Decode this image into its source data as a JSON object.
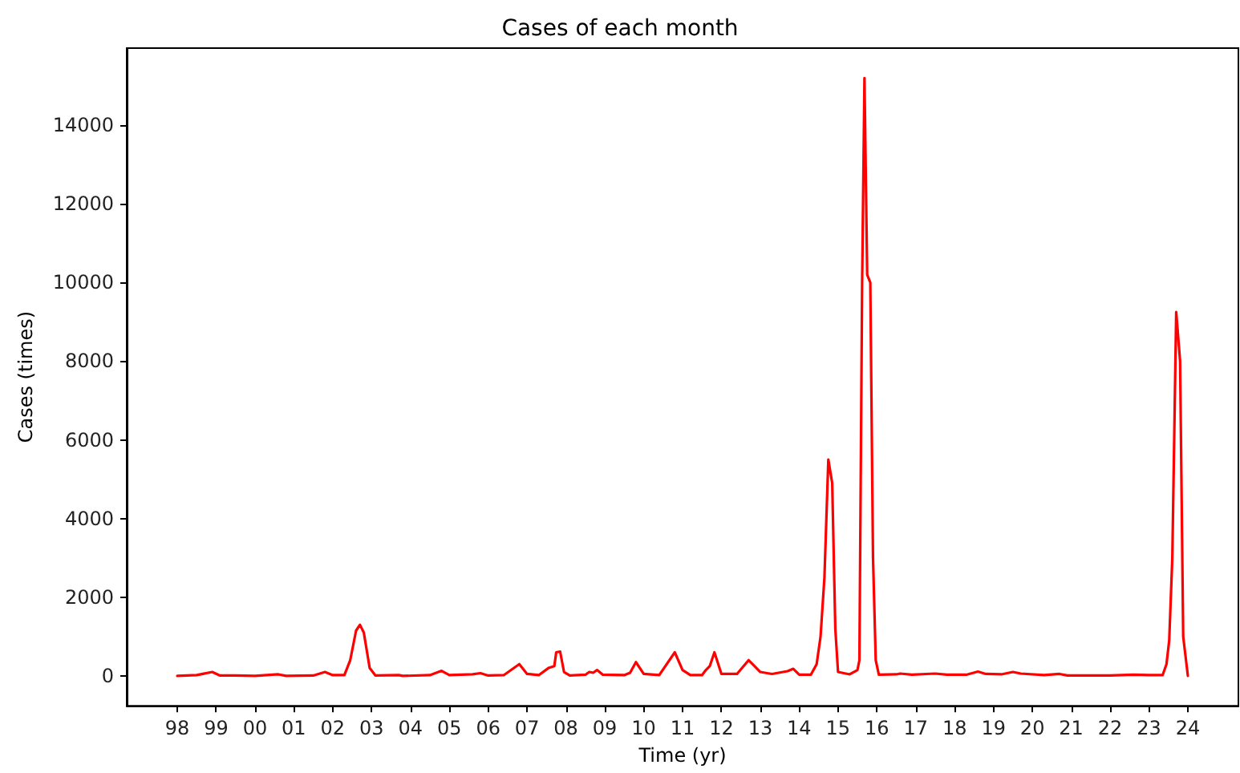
{
  "chart_data": {
    "type": "line",
    "title": "Cases of each month",
    "xlabel": "Time (yr)",
    "ylabel": "Cases (times)",
    "xlim": [
      1996.7,
      2025.3
    ],
    "ylim": [
      -760,
      15960
    ],
    "xticks": [
      {
        "value": 1998,
        "label": "98"
      },
      {
        "value": 1999,
        "label": "99"
      },
      {
        "value": 2000,
        "label": "00"
      },
      {
        "value": 2001,
        "label": "01"
      },
      {
        "value": 2002,
        "label": "02"
      },
      {
        "value": 2003,
        "label": "03"
      },
      {
        "value": 2004,
        "label": "04"
      },
      {
        "value": 2005,
        "label": "05"
      },
      {
        "value": 2006,
        "label": "06"
      },
      {
        "value": 2007,
        "label": "07"
      },
      {
        "value": 2008,
        "label": "08"
      },
      {
        "value": 2009,
        "label": "09"
      },
      {
        "value": 2010,
        "label": "10"
      },
      {
        "value": 2011,
        "label": "11"
      },
      {
        "value": 2012,
        "label": "12"
      },
      {
        "value": 2013,
        "label": "13"
      },
      {
        "value": 2014,
        "label": "14"
      },
      {
        "value": 2015,
        "label": "15"
      },
      {
        "value": 2016,
        "label": "16"
      },
      {
        "value": 2017,
        "label": "17"
      },
      {
        "value": 2018,
        "label": "18"
      },
      {
        "value": 2019,
        "label": "19"
      },
      {
        "value": 2020,
        "label": "20"
      },
      {
        "value": 2021,
        "label": "21"
      },
      {
        "value": 2022,
        "label": "22"
      },
      {
        "value": 2023,
        "label": "23"
      },
      {
        "value": 2024,
        "label": "24"
      }
    ],
    "yticks": [
      0,
      2000,
      4000,
      6000,
      8000,
      10000,
      12000,
      14000
    ],
    "grid": false,
    "marker": "none",
    "line_style": "solid",
    "series": [
      {
        "color": "#ff0000",
        "x": [
          1998.0,
          1998.5,
          1998.9,
          1999.1,
          1999.5,
          2000.0,
          2000.6,
          2000.8,
          2001.5,
          2001.8,
          2002.0,
          2002.3,
          2002.45,
          2002.6,
          2002.7,
          2002.8,
          2002.95,
          2003.1,
          2003.7,
          2003.8,
          2004.5,
          2004.8,
          2005.0,
          2005.6,
          2005.8,
          2006.0,
          2006.4,
          2006.8,
          2007.0,
          2007.3,
          2007.55,
          2007.7,
          2007.75,
          2007.85,
          2007.95,
          2008.1,
          2008.5,
          2008.6,
          2008.7,
          2008.8,
          2008.95,
          2009.5,
          2009.65,
          2009.8,
          2010.0,
          2010.4,
          2010.8,
          2011.0,
          2011.2,
          2011.5,
          2011.6,
          2011.7,
          2011.82,
          2012.0,
          2012.4,
          2012.7,
          2012.85,
          2013.0,
          2013.3,
          2013.7,
          2013.85,
          2014.0,
          2014.3,
          2014.45,
          2014.55,
          2014.65,
          2014.75,
          2014.85,
          2014.93,
          2015.0,
          2015.3,
          2015.5,
          2015.55,
          2015.62,
          2015.68,
          2015.75,
          2015.83,
          2015.9,
          2015.97,
          2016.05,
          2016.5,
          2016.6,
          2016.9,
          2017.5,
          2017.8,
          2018.3,
          2018.6,
          2018.8,
          2019.2,
          2019.5,
          2019.7,
          2020.3,
          2020.7,
          2020.9,
          2022.0,
          2022.6,
          2023.0,
          2023.35,
          2023.45,
          2023.52,
          2023.6,
          2023.7,
          2023.8,
          2023.88,
          2024.0
        ],
        "values": [
          0,
          20,
          100,
          10,
          10,
          0,
          40,
          0,
          10,
          100,
          20,
          20,
          400,
          1150,
          1300,
          1100,
          200,
          10,
          20,
          0,
          20,
          130,
          20,
          40,
          70,
          10,
          20,
          300,
          50,
          20,
          200,
          250,
          600,
          620,
          100,
          10,
          30,
          100,
          80,
          150,
          30,
          20,
          80,
          350,
          50,
          20,
          600,
          150,
          20,
          20,
          150,
          250,
          600,
          50,
          50,
          400,
          250,
          100,
          50,
          120,
          180,
          30,
          30,
          300,
          1000,
          2500,
          5500,
          4900,
          1200,
          100,
          40,
          150,
          400,
          10000,
          15200,
          10200,
          10000,
          3000,
          400,
          30,
          40,
          60,
          30,
          60,
          30,
          30,
          110,
          50,
          40,
          100,
          60,
          20,
          50,
          10,
          10,
          30,
          20,
          20,
          300,
          900,
          3000,
          9250,
          8000,
          1000,
          0
        ]
      }
    ]
  }
}
